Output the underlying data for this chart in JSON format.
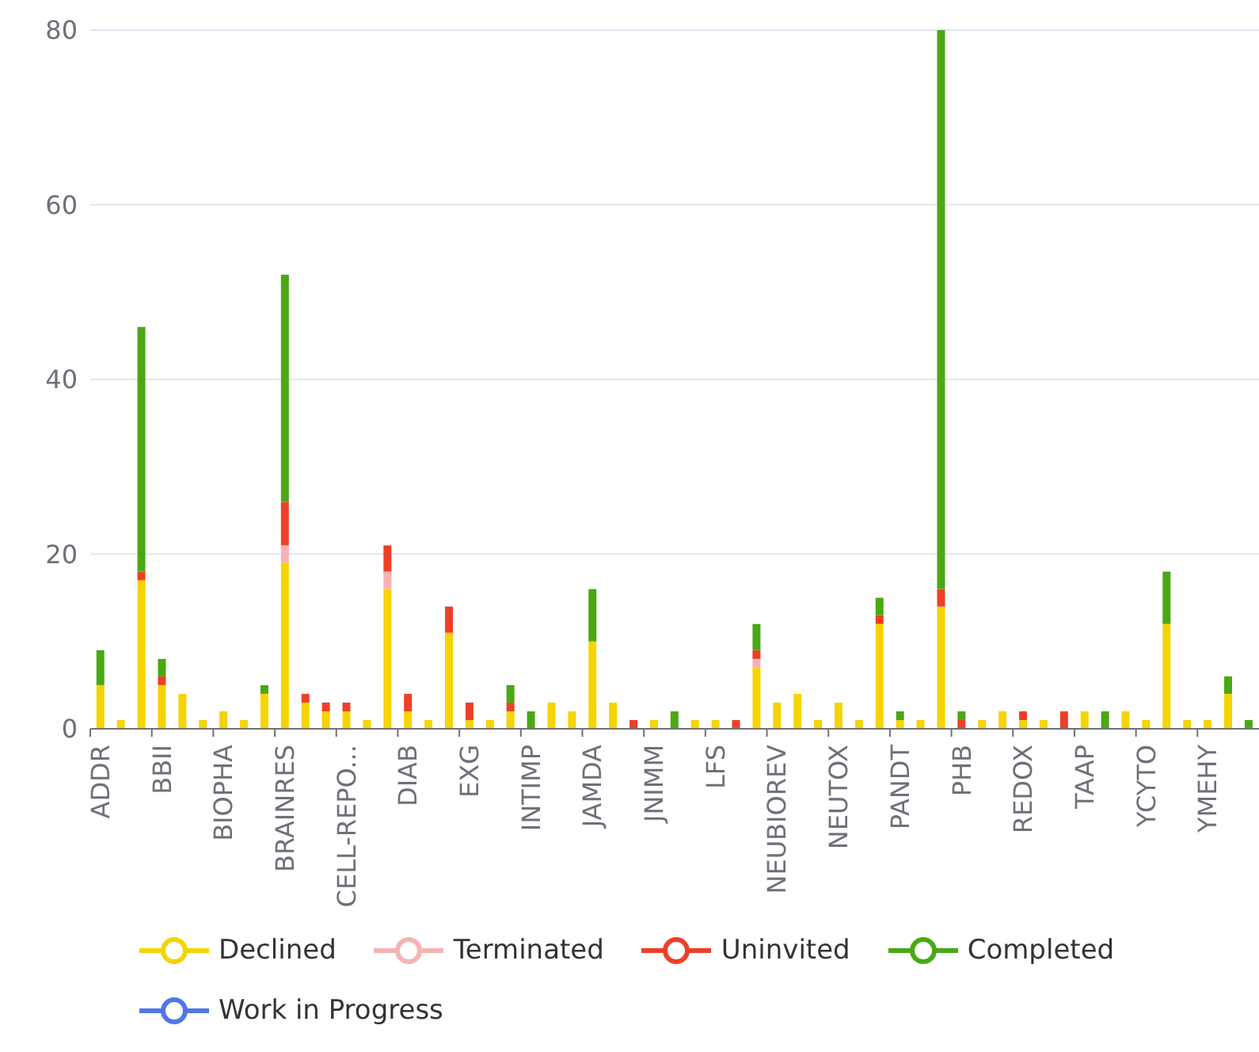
{
  "chart_data": {
    "type": "bar",
    "stacked": true,
    "categories": [
      "ADDR",
      null,
      null,
      "BBII",
      null,
      null,
      "BIOPHA",
      null,
      null,
      "BRAINRES",
      null,
      null,
      "CELL-REPO...",
      null,
      null,
      "DIAB",
      null,
      null,
      "EXG",
      null,
      null,
      "INTIMP",
      null,
      null,
      "JAMDA",
      null,
      null,
      "JNIMM",
      null,
      null,
      "LFS",
      null,
      null,
      "NEUBIOREV",
      null,
      null,
      "NEUTOX",
      null,
      null,
      "PANDT",
      null,
      null,
      "PHB",
      null,
      null,
      "REDOX",
      null,
      null,
      "TAAP",
      null,
      null,
      "YCYTO",
      null,
      null,
      "YMEHY",
      null,
      null
    ],
    "series": [
      {
        "name": "Declined",
        "color": "#f5d400",
        "values": [
          5,
          1,
          17,
          5,
          4,
          1,
          2,
          1,
          4,
          19,
          3,
          2,
          2,
          1,
          16,
          2,
          1,
          11,
          1,
          1,
          2,
          null,
          3,
          2,
          10,
          3,
          null,
          1,
          null,
          1,
          1,
          null,
          7,
          3,
          4,
          1,
          3,
          1,
          12,
          1,
          1,
          14,
          null,
          1,
          2,
          1,
          1,
          null,
          2,
          null,
          2,
          1,
          12,
          1,
          1,
          4,
          null
        ]
      },
      {
        "name": "Terminated",
        "color": "#f7b3b3",
        "values": [
          null,
          null,
          null,
          null,
          null,
          null,
          null,
          null,
          null,
          2,
          null,
          null,
          null,
          null,
          2,
          null,
          null,
          null,
          null,
          null,
          null,
          null,
          null,
          null,
          null,
          null,
          null,
          null,
          null,
          null,
          null,
          null,
          1,
          null,
          null,
          null,
          null,
          null,
          null,
          null,
          null,
          null,
          null,
          null,
          null,
          null,
          null,
          null,
          null,
          null,
          null,
          null,
          null,
          null,
          null,
          null,
          null
        ]
      },
      {
        "name": "Uninvited",
        "color": "#ee3f27",
        "values": [
          null,
          null,
          1,
          1,
          null,
          null,
          null,
          null,
          null,
          5,
          1,
          1,
          1,
          null,
          3,
          2,
          null,
          3,
          2,
          null,
          1,
          null,
          null,
          null,
          null,
          null,
          1,
          null,
          null,
          null,
          null,
          1,
          1,
          null,
          null,
          null,
          null,
          null,
          1,
          null,
          null,
          2,
          1,
          null,
          null,
          1,
          null,
          2,
          null,
          null,
          null,
          null,
          null,
          null,
          null,
          null,
          null
        ]
      },
      {
        "name": "Completed",
        "color": "#4aa815",
        "values": [
          4,
          null,
          28,
          2,
          null,
          null,
          null,
          null,
          1,
          26,
          null,
          null,
          null,
          null,
          null,
          null,
          null,
          null,
          null,
          null,
          2,
          2,
          null,
          null,
          6,
          null,
          null,
          null,
          2,
          null,
          null,
          null,
          3,
          null,
          null,
          null,
          null,
          null,
          2,
          1,
          null,
          64,
          1,
          null,
          null,
          null,
          null,
          null,
          null,
          2,
          null,
          null,
          6,
          null,
          null,
          2,
          1
        ]
      },
      {
        "name": "Work in Progress",
        "color": "#4f77e8",
        "values": [
          null,
          null,
          null,
          null,
          null,
          null,
          null,
          null,
          null,
          null,
          null,
          null,
          null,
          null,
          null,
          null,
          null,
          null,
          null,
          null,
          null,
          null,
          null,
          null,
          null,
          null,
          null,
          null,
          null,
          null,
          null,
          null,
          null,
          null,
          null,
          null,
          null,
          null,
          null,
          null,
          null,
          null,
          null,
          null,
          null,
          null,
          null,
          null,
          null,
          null,
          null,
          null,
          null,
          null,
          null,
          null,
          null
        ]
      }
    ],
    "ylim": [
      0,
      80
    ],
    "yticks": [
      0,
      20,
      40,
      60,
      80
    ],
    "grid": "y",
    "legend": "bottom"
  }
}
